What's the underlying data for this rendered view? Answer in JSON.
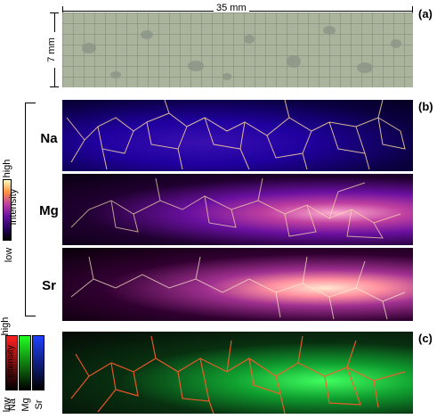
{
  "panels": {
    "a": "(a)",
    "b": "(b)",
    "c": "(c)"
  },
  "scale": {
    "width_label": "35 mm",
    "height_label": "7 mm"
  },
  "elements": [
    "Na",
    "Mg",
    "Sr"
  ],
  "colorbar_b": {
    "high": "high",
    "low": "low",
    "title": "intensity"
  },
  "colorbar_c": {
    "high": "high",
    "low": "low",
    "title": "intensity",
    "channels": [
      "Na",
      "Mg",
      "Sr"
    ]
  },
  "colors": {
    "red": "#ff2020",
    "green": "#20ff20",
    "blue": "#2040ff",
    "grain_boundary_b": "#ffd8a0",
    "grain_boundary_c": "#ff5a2a"
  }
}
